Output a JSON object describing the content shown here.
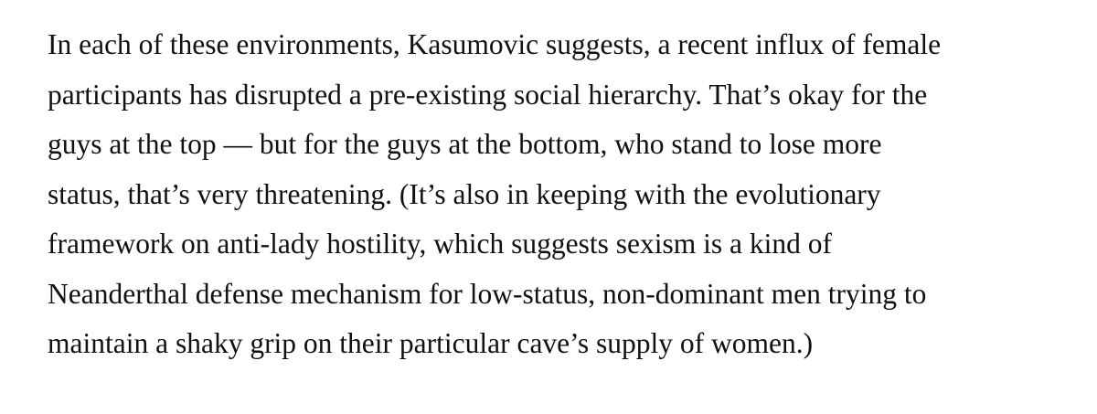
{
  "article": {
    "lines": [
      "In each of these environments, Kasumovic suggests, a recent influx of female",
      "participants has disrupted a pre-existing social hierarchy. That’s okay for the",
      "guys at the top — but for the guys at the bottom, who stand to lose more",
      "status, that’s very threatening. (It’s also in keeping with the evolutionary",
      "framework on anti-lady hostility, which suggests sexism is a kind of",
      "Neanderthal defense mechanism for low-status, non-dominant men trying to",
      "maintain a shaky grip on their particular cave’s supply of women.)"
    ]
  }
}
